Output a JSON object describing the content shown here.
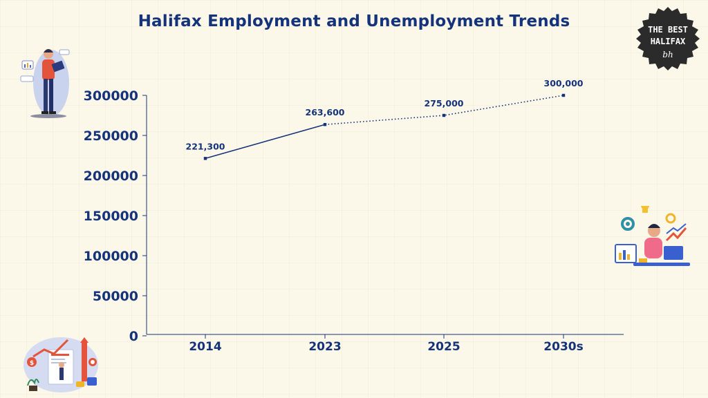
{
  "chart_data": {
    "type": "line",
    "title": "Halifax Employment and Unemployment Trends",
    "categories": [
      "2014",
      "2023",
      "2025",
      "2030s"
    ],
    "series": [
      {
        "values": [
          221300,
          263600,
          275000,
          300000
        ],
        "data_labels": [
          "221,300",
          "263,600",
          "275,000",
          "300,000"
        ]
      }
    ],
    "solid_segment_categories": [
      "2014",
      "2023"
    ],
    "dotted_segment_categories": [
      "2023",
      "2025",
      "2030s"
    ],
    "yticks": [
      0,
      50000,
      100000,
      150000,
      200000,
      250000,
      300000
    ],
    "ylim": [
      0,
      300000
    ],
    "xlabel": "",
    "ylabel": "",
    "grid": false,
    "line_color": "#14337a"
  },
  "badge": {
    "line1": "THE BEST",
    "line2": "HALIFAX",
    "mark": "bh",
    "color": "#2b2b2b"
  },
  "illustrations": [
    "person-with-tablet-icon",
    "person-at-laptop-analytics-icon",
    "business-growth-finance-icon"
  ]
}
